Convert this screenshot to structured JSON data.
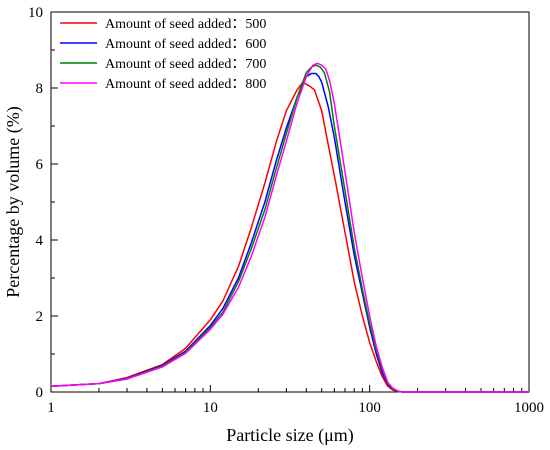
{
  "chart_data": {
    "type": "line",
    "xlabel": "Particle size (μm)",
    "ylabel": "Percentage by volume (%)",
    "x_scale": "log",
    "xlim": [
      1,
      1000
    ],
    "ylim": [
      0,
      10
    ],
    "x_ticks": [
      1,
      10,
      100,
      1000
    ],
    "x_tick_labels": [
      "1",
      "10",
      "100",
      "1000"
    ],
    "y_ticks": [
      0,
      2,
      4,
      6,
      8,
      10
    ],
    "y_tick_labels": [
      "0",
      "2",
      "4",
      "6",
      "8",
      "10"
    ],
    "grid": false,
    "legend_position": "top-left",
    "series": [
      {
        "name": "Amount of seed added：500",
        "color": "#ff0000",
        "x": [
          1,
          2,
          3,
          5,
          7,
          10,
          12,
          15,
          18,
          22,
          26,
          30,
          35,
          38,
          40,
          42,
          45,
          50,
          55,
          60,
          70,
          80,
          90,
          100,
          110,
          120,
          130,
          140,
          150,
          160,
          200,
          400,
          1000
        ],
        "y": [
          0.15,
          0.22,
          0.38,
          0.72,
          1.15,
          1.9,
          2.4,
          3.3,
          4.3,
          5.5,
          6.6,
          7.4,
          7.95,
          8.15,
          8.1,
          8.05,
          7.95,
          7.4,
          6.5,
          5.7,
          4.2,
          2.9,
          2.0,
          1.3,
          0.8,
          0.4,
          0.15,
          0.05,
          0.02,
          0.0,
          0.0,
          0.0,
          0.0
        ]
      },
      {
        "name": "Amount of seed added：600",
        "color": "#0000ff",
        "x": [
          1,
          2,
          3,
          5,
          7,
          10,
          12,
          15,
          18,
          22,
          26,
          30,
          35,
          40,
          43,
          46,
          48,
          50,
          55,
          60,
          70,
          80,
          90,
          100,
          110,
          120,
          130,
          140,
          150,
          160,
          200,
          400,
          1000
        ],
        "y": [
          0.15,
          0.22,
          0.36,
          0.7,
          1.08,
          1.75,
          2.2,
          3.0,
          3.9,
          5.0,
          6.1,
          6.95,
          7.75,
          8.3,
          8.38,
          8.38,
          8.3,
          8.15,
          7.5,
          6.7,
          5.0,
          3.6,
          2.6,
          1.7,
          1.0,
          0.5,
          0.2,
          0.07,
          0.02,
          0.0,
          0.0,
          0.0,
          0.0
        ]
      },
      {
        "name": "Amount of seed added：700",
        "color": "#008000",
        "x": [
          1,
          2,
          3,
          5,
          7,
          10,
          12,
          15,
          18,
          22,
          26,
          30,
          35,
          40,
          43,
          46,
          49,
          52,
          56,
          60,
          70,
          80,
          90,
          100,
          110,
          120,
          130,
          140,
          150,
          160,
          200,
          400,
          1000
        ],
        "y": [
          0.15,
          0.22,
          0.35,
          0.68,
          1.05,
          1.7,
          2.1,
          2.9,
          3.75,
          4.8,
          5.9,
          6.8,
          7.75,
          8.4,
          8.55,
          8.6,
          8.55,
          8.4,
          7.9,
          7.0,
          5.3,
          3.8,
          2.7,
          1.8,
          1.1,
          0.6,
          0.22,
          0.08,
          0.02,
          0.0,
          0.0,
          0.0,
          0.0
        ]
      },
      {
        "name": "Amount of seed added：800",
        "color": "#ff00ff",
        "x": [
          1,
          2,
          3,
          5,
          7,
          10,
          12,
          15,
          18,
          22,
          26,
          30,
          35,
          40,
          44,
          47,
          50,
          53,
          56,
          60,
          70,
          80,
          90,
          100,
          110,
          120,
          130,
          140,
          150,
          160,
          200,
          400,
          1000
        ],
        "y": [
          0.15,
          0.22,
          0.34,
          0.66,
          1.02,
          1.65,
          2.05,
          2.75,
          3.55,
          4.6,
          5.7,
          6.6,
          7.6,
          8.3,
          8.6,
          8.65,
          8.6,
          8.5,
          8.2,
          7.6,
          5.8,
          4.2,
          3.0,
          2.0,
          1.2,
          0.65,
          0.25,
          0.1,
          0.03,
          0.0,
          0.0,
          0.0,
          0.0
        ]
      }
    ]
  }
}
